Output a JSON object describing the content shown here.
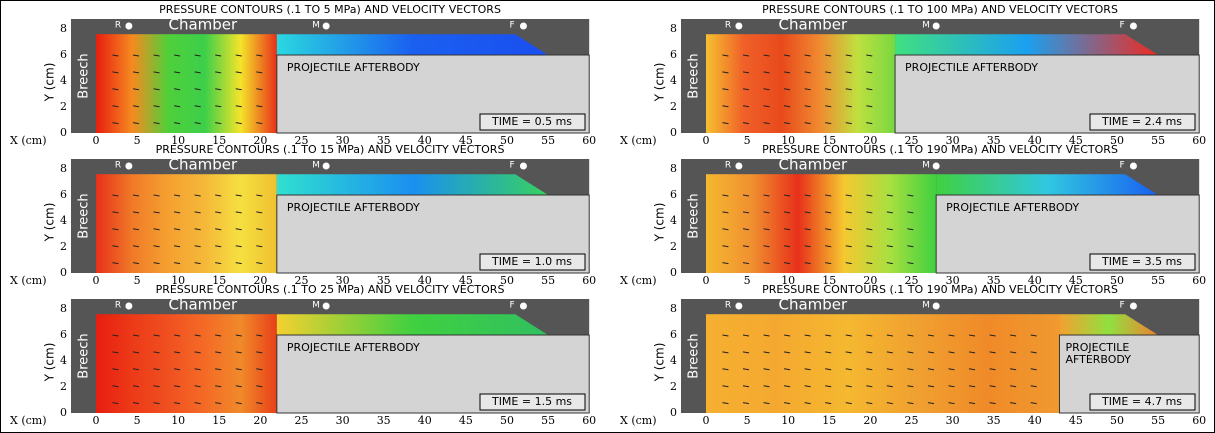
{
  "axes": {
    "x_label": "X (cm)",
    "y_label": "Y (cm)",
    "x_ticks": [
      0,
      5,
      10,
      15,
      20,
      25,
      30,
      35,
      40,
      45,
      50,
      55,
      60
    ],
    "y_ticks": [
      0,
      2,
      4,
      6,
      8
    ],
    "breech": "Breech",
    "chamber": "Chamber",
    "markers": [
      "R",
      "M",
      "F"
    ]
  },
  "panels": [
    {
      "title": "PRESSURE CONTOURS (.1 TO 5 MPa) AND VELOCITY VECTORS",
      "afterbody": [
        "PROJECTILE AFTERBODY"
      ],
      "time": "TIME = 0.5 ms"
    },
    {
      "title": "PRESSURE CONTOURS (.1 TO 15 MPa) AND VELOCITY VECTORS",
      "afterbody": [
        "PROJECTILE AFTERBODY"
      ],
      "time": "TIME = 1.0 ms"
    },
    {
      "title": "PRESSURE CONTOURS (.1 TO 25 MPa) AND VELOCITY VECTORS",
      "afterbody": [
        "PROJECTILE AFTERBODY"
      ],
      "time": "TIME = 1.5 ms"
    },
    {
      "title": "PRESSURE CONTOURS (.1 TO 100 MPa) AND VELOCITY VECTORS",
      "afterbody": [
        "PROJECTILE AFTERBODY"
      ],
      "time": "TIME = 2.4 ms"
    },
    {
      "title": "PRESSURE CONTOURS (.1 TO 190 MPa) AND VELOCITY VECTORS",
      "afterbody": [
        "PROJECTILE AFTERBODY"
      ],
      "time": "TIME = 3.5 ms"
    },
    {
      "title": "PRESSURE CONTOURS (.1 TO 190 MPa) AND VELOCITY VECTORS",
      "afterbody": [
        "PROJECTILE",
        "AFTERBODY"
      ],
      "time": "TIME = 4.7 ms"
    }
  ]
}
